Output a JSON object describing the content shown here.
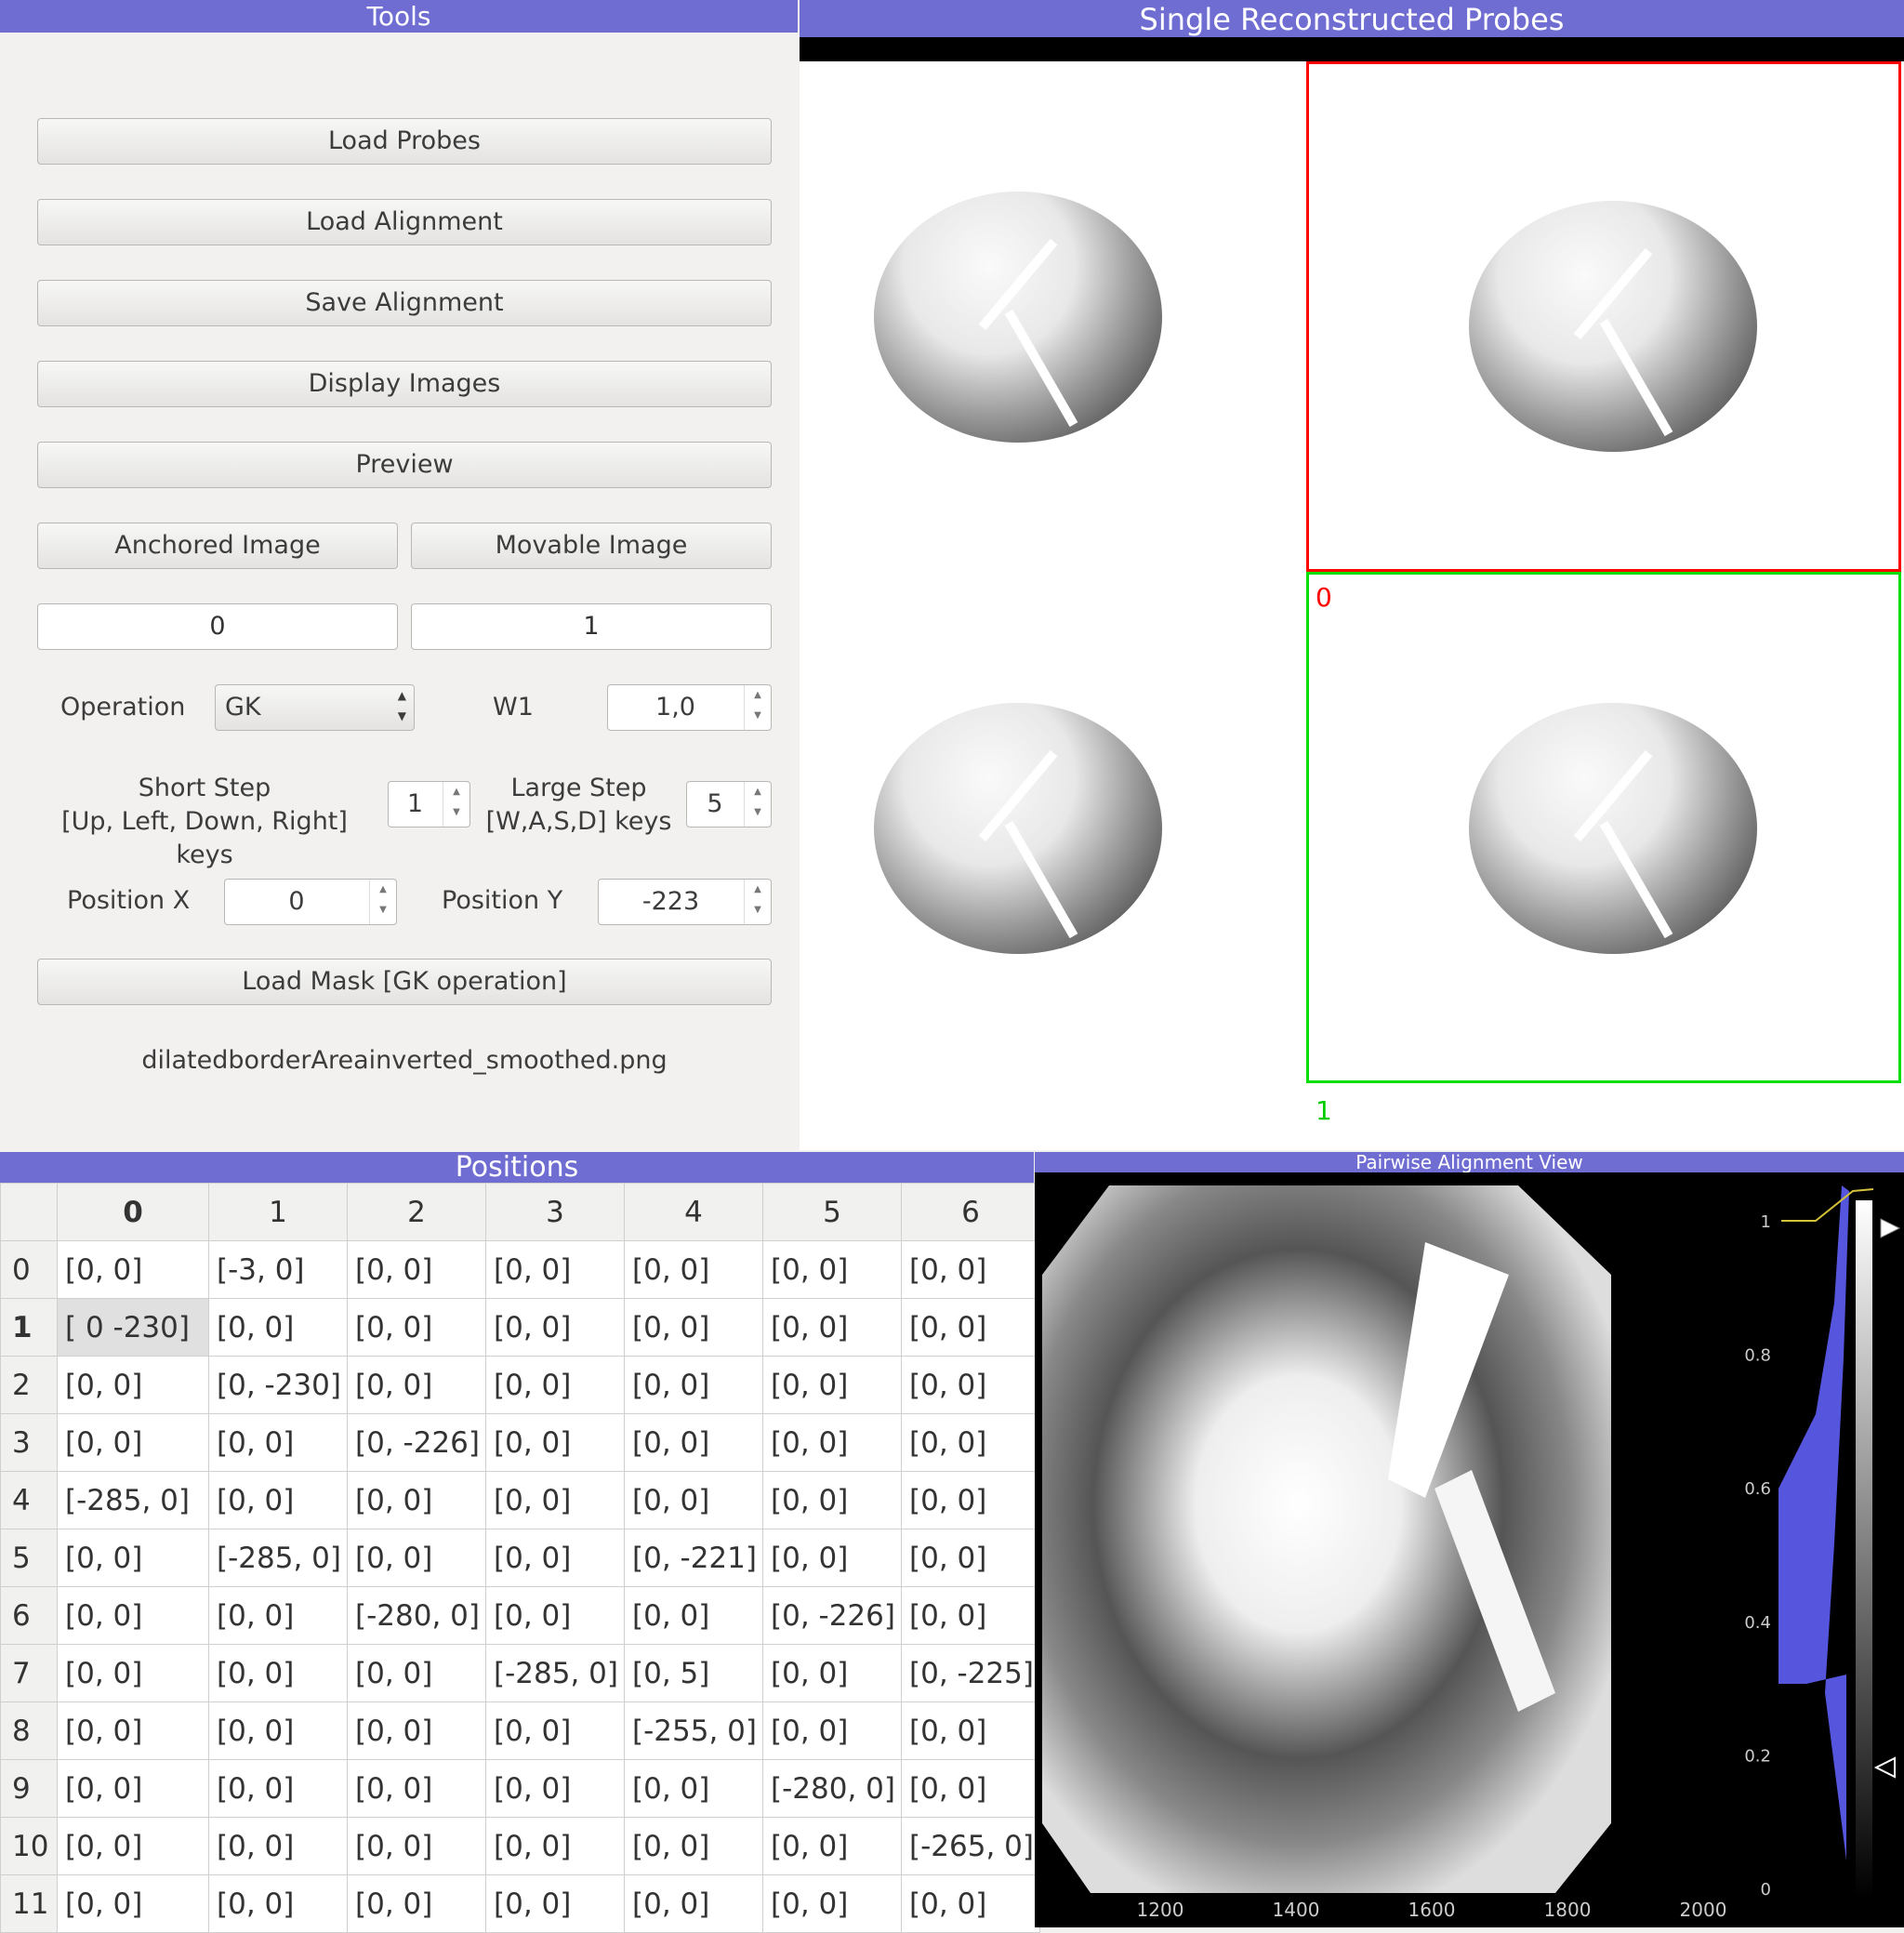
{
  "tools": {
    "title": "Tools",
    "load_probes": "Load Probes",
    "load_alignment": "Load Alignment",
    "save_alignment": "Save Alignment",
    "display_images": "Display Images",
    "preview": "Preview",
    "anchored_image": "Anchored Image",
    "movable_image": "Movable Image",
    "anchored_value": "0",
    "movable_value": "1",
    "operation_label": "Operation",
    "operation_value": "GK",
    "w1_label": "W1",
    "w1_value": "1,0",
    "short_step_label_1": "Short Step",
    "short_step_label_2": "[Up, Left, Down, Right] keys",
    "short_step_value": "1",
    "large_step_label_1": "Large Step",
    "large_step_label_2": "[W,A,S,D] keys",
    "large_step_value": "5",
    "position_x_label": "Position X",
    "position_x_value": "0",
    "position_y_label": "Position Y",
    "position_y_value": "-223",
    "load_mask": "Load Mask [GK operation]",
    "mask_file": "dilatedborderAreainverted_smoothed.png"
  },
  "probes": {
    "title": "Single Reconstructed Probes",
    "label_anchored": "0",
    "label_movable": "1",
    "colors": {
      "anchored": "#ff0000",
      "movable": "#00dd00"
    }
  },
  "positions": {
    "title": "Positions",
    "columns": [
      "0",
      "1",
      "2",
      "3",
      "4",
      "5",
      "6"
    ],
    "rows": [
      {
        "h": "0",
        "cells": [
          "[0, 0]",
          "[-3, 0]",
          "[0, 0]",
          "[0, 0]",
          "[0, 0]",
          "[0, 0]",
          "[0, 0]"
        ]
      },
      {
        "h": "1",
        "cells": [
          "[  0 -230]",
          "[0, 0]",
          "[0, 0]",
          "[0, 0]",
          "[0, 0]",
          "[0, 0]",
          "[0, 0]"
        ]
      },
      {
        "h": "2",
        "cells": [
          "[0, 0]",
          "[0, -230]",
          "[0, 0]",
          "[0, 0]",
          "[0, 0]",
          "[0, 0]",
          "[0, 0]"
        ]
      },
      {
        "h": "3",
        "cells": [
          "[0, 0]",
          "[0, 0]",
          "[0, -226]",
          "[0, 0]",
          "[0, 0]",
          "[0, 0]",
          "[0, 0]"
        ]
      },
      {
        "h": "4",
        "cells": [
          "[-285, 0]",
          "[0, 0]",
          "[0, 0]",
          "[0, 0]",
          "[0, 0]",
          "[0, 0]",
          "[0, 0]"
        ]
      },
      {
        "h": "5",
        "cells": [
          "[0, 0]",
          "[-285, 0]",
          "[0, 0]",
          "[0, 0]",
          "[0, -221]",
          "[0, 0]",
          "[0, 0]"
        ]
      },
      {
        "h": "6",
        "cells": [
          "[0, 0]",
          "[0, 0]",
          "[-280, 0]",
          "[0, 0]",
          "[0, 0]",
          "[0, -226]",
          "[0, 0]"
        ]
      },
      {
        "h": "7",
        "cells": [
          "[0, 0]",
          "[0, 0]",
          "[0, 0]",
          "[-285, 0]",
          "[0, 5]",
          "[0, 0]",
          "[0, -225]"
        ]
      },
      {
        "h": "8",
        "cells": [
          "[0, 0]",
          "[0, 0]",
          "[0, 0]",
          "[0, 0]",
          "[-255, 0]",
          "[0, 0]",
          "[0, 0]"
        ]
      },
      {
        "h": "9",
        "cells": [
          "[0, 0]",
          "[0, 0]",
          "[0, 0]",
          "[0, 0]",
          "[0, 0]",
          "[-280, 0]",
          "[0, 0]"
        ]
      },
      {
        "h": "10",
        "cells": [
          "[0, 0]",
          "[0, 0]",
          "[0, 0]",
          "[0, 0]",
          "[0, 0]",
          "[0, 0]",
          "[-265, 0]"
        ]
      },
      {
        "h": "11",
        "cells": [
          "[0, 0]",
          "[0, 0]",
          "[0, 0]",
          "[0, 0]",
          "[0, 0]",
          "[0, 0]",
          "[0, 0]"
        ]
      }
    ]
  },
  "alignment_view": {
    "title": "Pairwise Alignment View",
    "x_ticks": [
      "1200",
      "1400",
      "1600",
      "1800",
      "2000"
    ],
    "histogram_ticks": [
      "0",
      "0.2",
      "0.4",
      "0.6",
      "0.8",
      "1"
    ],
    "colors": {
      "histogram_fill": "#5555dd",
      "level_line": "#d4c23a"
    }
  }
}
